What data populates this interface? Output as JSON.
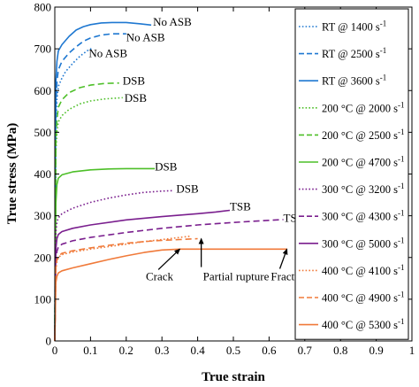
{
  "chart_data": {
    "type": "line",
    "xlabel": "True strain",
    "ylabel": "True stress (MPa)",
    "xlim": [
      0,
      1
    ],
    "ylim": [
      0,
      800
    ],
    "xticks": [
      0,
      0.1,
      0.2,
      0.3,
      0.4,
      0.5,
      0.6,
      0.7,
      0.8,
      0.9,
      1
    ],
    "yticks": [
      0,
      100,
      200,
      300,
      400,
      500,
      600,
      700,
      800
    ],
    "xtick_labels": [
      "0",
      "0.1",
      "0.2",
      "0.3",
      "0.4",
      "0.5",
      "0.6",
      "0.7",
      "0.8",
      "0.9",
      "1"
    ],
    "ytick_labels": [
      "0",
      "100",
      "200",
      "300",
      "400",
      "500",
      "600",
      "700",
      "800"
    ],
    "grid": false,
    "legend_position": "right",
    "series": [
      {
        "name": "RT @ 1400 s",
        "sup": "-1",
        "color": "#1f78d1",
        "dash": "dotted",
        "points": [
          [
            0,
            0
          ],
          [
            0.003,
            520
          ],
          [
            0.006,
            580
          ],
          [
            0.01,
            610
          ],
          [
            0.02,
            630
          ],
          [
            0.03,
            645
          ],
          [
            0.05,
            665
          ],
          [
            0.07,
            682
          ],
          [
            0.09,
            695
          ],
          [
            0.105,
            702
          ]
        ]
      },
      {
        "name": "RT @ 2500 s",
        "sup": "-1",
        "color": "#1f78d1",
        "dash": "dashed",
        "points": [
          [
            0,
            0
          ],
          [
            0.003,
            560
          ],
          [
            0.006,
            620
          ],
          [
            0.01,
            650
          ],
          [
            0.02,
            670
          ],
          [
            0.04,
            690
          ],
          [
            0.06,
            705
          ],
          [
            0.08,
            718
          ],
          [
            0.1,
            726
          ],
          [
            0.13,
            733
          ],
          [
            0.16,
            736
          ],
          [
            0.2,
            736
          ]
        ]
      },
      {
        "name": "RT @ 3600 s",
        "sup": "-1",
        "color": "#1f78d1",
        "dash": "solid",
        "points": [
          [
            0,
            0
          ],
          [
            0.003,
            620
          ],
          [
            0.006,
            670
          ],
          [
            0.01,
            695
          ],
          [
            0.02,
            710
          ],
          [
            0.04,
            730
          ],
          [
            0.06,
            745
          ],
          [
            0.08,
            753
          ],
          [
            0.1,
            758
          ],
          [
            0.13,
            762
          ],
          [
            0.16,
            763
          ],
          [
            0.2,
            763
          ],
          [
            0.24,
            760
          ],
          [
            0.27,
            757
          ]
        ]
      },
      {
        "name": "200 °C @ 2000 s",
        "sup": "-1",
        "color": "#4dbf28",
        "dash": "dotted",
        "points": [
          [
            0,
            0
          ],
          [
            0.003,
            450
          ],
          [
            0.006,
            500
          ],
          [
            0.01,
            525
          ],
          [
            0.02,
            540
          ],
          [
            0.04,
            555
          ],
          [
            0.07,
            568
          ],
          [
            0.1,
            575
          ],
          [
            0.14,
            580
          ],
          [
            0.19,
            583
          ]
        ]
      },
      {
        "name": "200 °C @ 2500 s",
        "sup": "-1",
        "color": "#4dbf28",
        "dash": "dashed",
        "points": [
          [
            0,
            0
          ],
          [
            0.003,
            480
          ],
          [
            0.006,
            530
          ],
          [
            0.01,
            560
          ],
          [
            0.02,
            578
          ],
          [
            0.04,
            595
          ],
          [
            0.07,
            607
          ],
          [
            0.1,
            613
          ],
          [
            0.14,
            617
          ],
          [
            0.18,
            618
          ]
        ]
      },
      {
        "name": "200 °C @ 4700 s",
        "sup": "-1",
        "color": "#4dbf28",
        "dash": "solid",
        "points": [
          [
            0,
            0
          ],
          [
            0.003,
            330
          ],
          [
            0.006,
            375
          ],
          [
            0.01,
            390
          ],
          [
            0.02,
            398
          ],
          [
            0.05,
            405
          ],
          [
            0.1,
            410
          ],
          [
            0.15,
            412
          ],
          [
            0.2,
            413
          ],
          [
            0.25,
            413
          ],
          [
            0.28,
            413
          ]
        ]
      },
      {
        "name": "300 °C @ 3200 s",
        "sup": "-1",
        "color": "#7a1f8e",
        "dash": "dotted",
        "points": [
          [
            0,
            0
          ],
          [
            0.003,
            260
          ],
          [
            0.006,
            285
          ],
          [
            0.01,
            295
          ],
          [
            0.02,
            305
          ],
          [
            0.05,
            318
          ],
          [
            0.1,
            332
          ],
          [
            0.15,
            342
          ],
          [
            0.2,
            350
          ],
          [
            0.25,
            356
          ],
          [
            0.3,
            359
          ],
          [
            0.33,
            360
          ]
        ]
      },
      {
        "name": "300 °C @ 4300 s",
        "sup": "-1",
        "color": "#7a1f8e",
        "dash": "dashed",
        "points": [
          [
            0,
            0
          ],
          [
            0.003,
            190
          ],
          [
            0.006,
            215
          ],
          [
            0.01,
            225
          ],
          [
            0.02,
            232
          ],
          [
            0.05,
            240
          ],
          [
            0.1,
            248
          ],
          [
            0.2,
            260
          ],
          [
            0.3,
            270
          ],
          [
            0.4,
            278
          ],
          [
            0.5,
            284
          ],
          [
            0.6,
            289
          ],
          [
            0.64,
            291
          ]
        ]
      },
      {
        "name": "300 °C @ 5000 s",
        "sup": "-1",
        "color": "#7a1f8e",
        "dash": "solid",
        "points": [
          [
            0,
            0
          ],
          [
            0.003,
            220
          ],
          [
            0.006,
            245
          ],
          [
            0.01,
            255
          ],
          [
            0.02,
            262
          ],
          [
            0.05,
            270
          ],
          [
            0.1,
            278
          ],
          [
            0.2,
            290
          ],
          [
            0.3,
            298
          ],
          [
            0.4,
            305
          ],
          [
            0.45,
            309
          ],
          [
            0.49,
            313
          ]
        ]
      },
      {
        "name": "400 °C @ 4100 s",
        "sup": "-1",
        "color": "#f07a3a",
        "dash": "dotted",
        "points": [
          [
            0,
            0
          ],
          [
            0.003,
            170
          ],
          [
            0.006,
            190
          ],
          [
            0.01,
            200
          ],
          [
            0.02,
            207
          ],
          [
            0.05,
            213
          ],
          [
            0.1,
            220
          ],
          [
            0.15,
            226
          ],
          [
            0.2,
            232
          ],
          [
            0.25,
            238
          ],
          [
            0.3,
            243
          ],
          [
            0.35,
            248
          ],
          [
            0.38,
            251
          ]
        ]
      },
      {
        "name": "400 °C @ 4900 s",
        "sup": "-1",
        "color": "#f07a3a",
        "dash": "dashed",
        "points": [
          [
            0,
            0
          ],
          [
            0.003,
            175
          ],
          [
            0.006,
            195
          ],
          [
            0.01,
            203
          ],
          [
            0.02,
            210
          ],
          [
            0.05,
            216
          ],
          [
            0.1,
            223
          ],
          [
            0.15,
            229
          ],
          [
            0.2,
            234
          ],
          [
            0.25,
            238
          ],
          [
            0.3,
            241
          ],
          [
            0.35,
            243
          ],
          [
            0.4,
            245
          ]
        ]
      },
      {
        "name": "400 °C @ 5300 s",
        "sup": "-1",
        "color": "#f07a3a",
        "dash": "solid",
        "points": [
          [
            0,
            0
          ],
          [
            0.003,
            140
          ],
          [
            0.006,
            155
          ],
          [
            0.01,
            163
          ],
          [
            0.02,
            168
          ],
          [
            0.05,
            175
          ],
          [
            0.1,
            185
          ],
          [
            0.15,
            195
          ],
          [
            0.2,
            204
          ],
          [
            0.25,
            212
          ],
          [
            0.3,
            218
          ],
          [
            0.35,
            220
          ],
          [
            0.45,
            220
          ],
          [
            0.55,
            220
          ],
          [
            0.65,
            220
          ]
        ]
      }
    ],
    "annotations": [
      {
        "text": "No ASB",
        "x": 0.275,
        "y": 755
      },
      {
        "text": "No ASB",
        "x": 0.2,
        "y": 718
      },
      {
        "text": "No ASB",
        "x": 0.095,
        "y": 680
      },
      {
        "text": "DSB",
        "x": 0.19,
        "y": 614
      },
      {
        "text": "DSB",
        "x": 0.195,
        "y": 573
      },
      {
        "text": "DSB",
        "x": 0.28,
        "y": 409
      },
      {
        "text": "DSB",
        "x": 0.34,
        "y": 355
      },
      {
        "text": "TSB",
        "x": 0.49,
        "y": 313
      },
      {
        "text": "TSB",
        "x": 0.64,
        "y": 285
      },
      {
        "text": "Crack",
        "x": 0.255,
        "y": 145
      },
      {
        "text": "Partial rupture",
        "x": 0.415,
        "y": 145
      },
      {
        "text": "Fracture",
        "x": 0.605,
        "y": 145
      }
    ],
    "arrows": [
      {
        "from": [
          0.29,
          171
        ],
        "to": [
          0.35,
          220
        ]
      },
      {
        "from": [
          0.41,
          177
        ],
        "to": [
          0.41,
          245
        ]
      },
      {
        "from": [
          0.63,
          173
        ],
        "to": [
          0.65,
          220
        ]
      }
    ]
  }
}
